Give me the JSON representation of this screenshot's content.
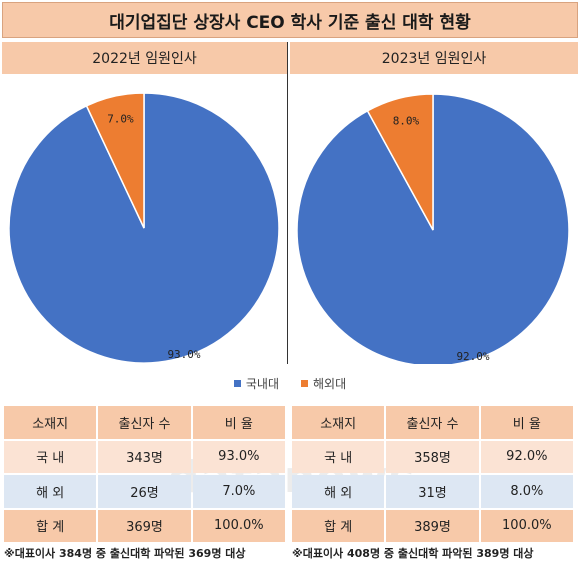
{
  "title": "대기업집단 상장사 CEO 학사 기준 출신 대학 현황",
  "watermark": "datanews",
  "colors": {
    "domestic": "#4472c4",
    "foreign": "#ed7d31",
    "accent": "#f7c9a9"
  },
  "chart_data": [
    {
      "type": "pie",
      "title": "2022년 임원인사",
      "slices": [
        {
          "name": "국내대",
          "value": 93.0,
          "label": "93.0%"
        },
        {
          "name": "해외대",
          "value": 7.0,
          "label": "7.0%"
        }
      ]
    },
    {
      "type": "pie",
      "title": "2023년 임원인사",
      "slices": [
        {
          "name": "국내대",
          "value": 92.0,
          "label": "92.0%"
        },
        {
          "name": "해외대",
          "value": 8.0,
          "label": "8.0%"
        }
      ]
    }
  ],
  "legend": {
    "domestic": "국내대",
    "foreign": "해외대"
  },
  "tables": [
    {
      "headers": [
        "소재지",
        "출신자 수",
        "비  율"
      ],
      "rows": [
        [
          "국  내",
          "343명",
          "93.0%"
        ],
        [
          "해  외",
          "26명",
          "7.0%"
        ],
        [
          "합  계",
          "369명",
          "100.0%"
        ]
      ],
      "footnote": "※대표이사 384명 중 출신대학 파악된 369명 대상"
    },
    {
      "headers": [
        "소재지",
        "출신자 수",
        "비  율"
      ],
      "rows": [
        [
          "국  내",
          "358명",
          "92.0%"
        ],
        [
          "해  외",
          "31명",
          "8.0%"
        ],
        [
          "합  계",
          "389명",
          "100.0%"
        ]
      ],
      "footnote": "※대표이사 408명 중 출신대학 파악된 389명 대상"
    }
  ]
}
